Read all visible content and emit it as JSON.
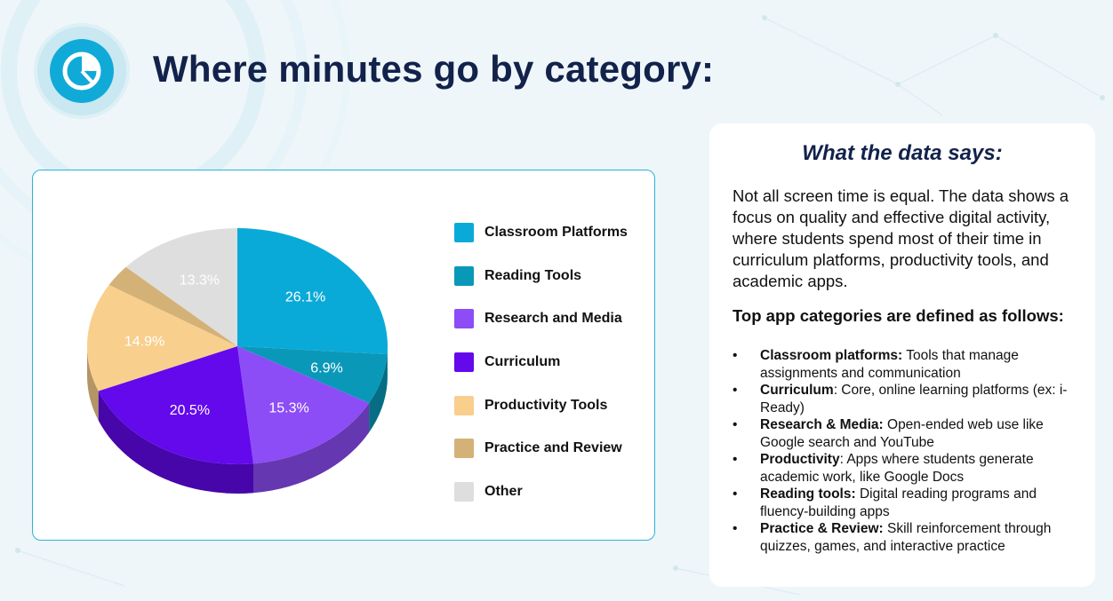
{
  "header": {
    "title": "Where minutes go by category:",
    "icon": "pie-chart-icon",
    "accent": "#10aad8"
  },
  "chart_data": {
    "type": "pie",
    "categories": [
      "Classroom Platforms",
      "Reading Tools",
      "Research and Media",
      "Curriculum",
      "Productivity Tools",
      "Practice and Review",
      "Other"
    ],
    "values": [
      26.1,
      6.9,
      15.3,
      20.5,
      14.9,
      3.0,
      13.3
    ],
    "labels": [
      "26.1%",
      "6.9%",
      "15.3%",
      "20.5%",
      "14.9%",
      "",
      "13.3%"
    ],
    "colors": [
      "#0aaad8",
      "#0a98b9",
      "#8c4df6",
      "#6309ec",
      "#f8cf8d",
      "#d4b277",
      "#dedede"
    ],
    "style": "3d",
    "legend_position": "right"
  },
  "info": {
    "title": "What the data says:",
    "body": "Not all screen time is equal. The data shows a focus on quality and effective digital activity, where students spend most of their time in curriculum platforms, productivity tools, and academic apps.",
    "subheading": "Top app categories are defined as follows:",
    "definitions": [
      {
        "term": "Classroom platforms:",
        "text": " Tools that manage assignments and communication"
      },
      {
        "term": "Curriculum",
        "text": ": Core, online learning platforms (ex: i-Ready)"
      },
      {
        "term": "Research & Media:",
        "text": " Open-ended web use like Google search and YouTube"
      },
      {
        "term": "Productivity",
        "text": ": Apps where students generate academic work, like Google Docs"
      },
      {
        "term": "Reading tools:",
        "text": " Digital reading programs and fluency-building apps"
      },
      {
        "term": "Practice & Review:",
        "text": " Skill reinforcement through quizzes, games, and interactive practice"
      }
    ],
    "bullet": "•"
  }
}
